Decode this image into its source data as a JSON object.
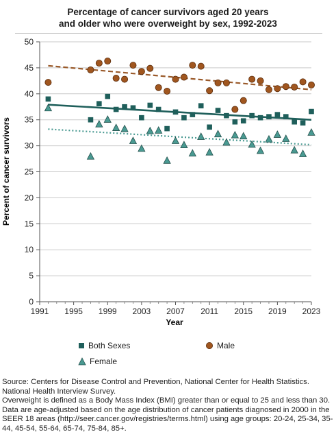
{
  "title_lines": [
    "Percentage of cancer survivors aged 20 years",
    "and older who were overweight by sex, 1992-2023"
  ],
  "chart_data": {
    "type": "scatter",
    "xlabel": "Year",
    "ylabel": "Percent of cancer survivors",
    "xlim": [
      1991,
      2023
    ],
    "ylim": [
      0,
      50
    ],
    "x_ticks": [
      1991,
      1995,
      1999,
      2003,
      2007,
      2011,
      2015,
      2019,
      2023
    ],
    "y_ticks": [
      0,
      5,
      10,
      15,
      20,
      25,
      30,
      35,
      40,
      45,
      50
    ],
    "grid": "horizontal",
    "legend_placement": "bottom",
    "series": [
      {
        "name": "Both Sexes",
        "marker": "square",
        "color": "#1f5f5b",
        "x": [
          1992,
          1997,
          1998,
          1999,
          2000,
          2001,
          2002,
          2003,
          2004,
          2005,
          2006,
          2007,
          2008,
          2009,
          2010,
          2011,
          2012,
          2013,
          2014,
          2015,
          2016,
          2017,
          2018,
          2019,
          2020,
          2021,
          2022,
          2023
        ],
        "values": [
          39.0,
          35.0,
          38.1,
          39.5,
          37.0,
          37.5,
          37.3,
          35.4,
          37.8,
          37.0,
          33.3,
          36.5,
          35.4,
          36.0,
          37.7,
          33.6,
          36.8,
          35.8,
          34.6,
          34.8,
          35.8,
          35.4,
          35.6,
          36.0,
          35.6,
          34.6,
          34.4,
          36.6
        ],
        "trend": {
          "style": "solid",
          "color": "#1f5f5b",
          "start": [
            1992,
            37.9
          ],
          "end": [
            2023,
            35.0
          ]
        }
      },
      {
        "name": "Male",
        "marker": "circle",
        "color": "#8b4a1c",
        "x": [
          1992,
          1997,
          1998,
          1999,
          2000,
          2001,
          2002,
          2003,
          2004,
          2005,
          2006,
          2007,
          2008,
          2009,
          2010,
          2011,
          2012,
          2013,
          2014,
          2015,
          2016,
          2017,
          2018,
          2019,
          2020,
          2021,
          2022,
          2023
        ],
        "values": [
          42.2,
          44.6,
          45.9,
          46.3,
          43.0,
          42.8,
          45.5,
          44.3,
          44.9,
          41.2,
          40.5,
          42.8,
          43.2,
          45.5,
          45.3,
          40.6,
          42.1,
          42.1,
          37.0,
          38.7,
          42.8,
          42.5,
          40.8,
          41.0,
          41.4,
          41.3,
          42.3,
          41.7
        ],
        "trend": {
          "style": "dashed",
          "color": "#9a5a2a",
          "start": [
            1992,
            45.4
          ],
          "end": [
            2023,
            40.8
          ]
        }
      },
      {
        "name": "Female",
        "marker": "triangle",
        "color": "#4a9a92",
        "x": [
          1992,
          1997,
          1998,
          1999,
          2000,
          2001,
          2002,
          2003,
          2004,
          2005,
          2006,
          2007,
          2008,
          2009,
          2010,
          2011,
          2012,
          2013,
          2014,
          2015,
          2016,
          2017,
          2018,
          2019,
          2020,
          2021,
          2022,
          2023
        ],
        "values": [
          37.3,
          28.0,
          34.2,
          35.1,
          33.5,
          33.3,
          31.0,
          29.5,
          32.9,
          33.0,
          27.2,
          31.0,
          30.2,
          28.6,
          31.8,
          28.8,
          32.3,
          30.7,
          32.1,
          31.9,
          30.3,
          29.1,
          31.3,
          32.2,
          31.4,
          29.2,
          28.5,
          32.6
        ],
        "trend": {
          "style": "dotted",
          "color": "#4a9a92",
          "start": [
            1992,
            33.2
          ],
          "end": [
            2023,
            30.2
          ]
        }
      }
    ]
  },
  "legend": {
    "both_sexes": "Both Sexes",
    "male": "Male",
    "female": "Female"
  },
  "footnotes": [
    "Source: Centers for Disease Control and Prevention, National Center for Health Statistics. National Health Interview Survey.",
    "Overweight is defined as a Body Mass Index (BMI) greater than or equal to 25 and less than 30.",
    "Data are age-adjusted based on the age distribution of cancer patients diagnosed in 2000 in the SEER 18 areas (http://seer.cancer.gov/registries/terms.html) using age groups: 20-24, 25-34, 35-44, 45-54, 55-64, 65-74, 75-84, 85+."
  ]
}
